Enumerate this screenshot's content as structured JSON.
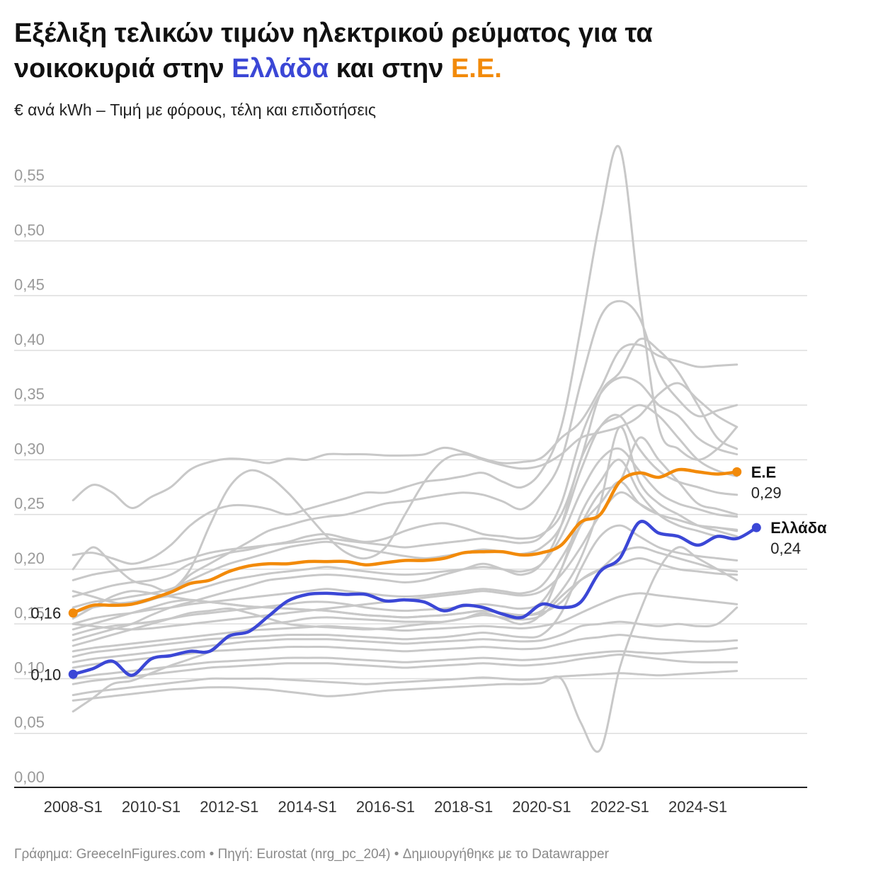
{
  "title": {
    "line1": "Εξέλιξη τελικών τιμών ηλεκτρικού ρεύματος για τα",
    "line2_prefix": "νοικοκυριά στην ",
    "line2_greece": "Ελλάδα",
    "line2_middle": " και στην ",
    "line2_eu": "Ε.Ε."
  },
  "subtitle": "€ ανά kWh – Τιμή με φόρους, τέλη και επιδοτήσεις",
  "footer": "Γράφημα: GreeceInFigures.com • Πηγή: Eurostat (nrg_pc_204) • Δημιουργήθηκε με το Datawrapper",
  "colors": {
    "greece": "#3b47d6",
    "eu": "#f28a0a",
    "other": "#c8c8c8",
    "grid": "#dddddd",
    "axis": "#222222"
  },
  "chart_data": {
    "type": "line",
    "x_start": 2008.0,
    "x_step": 0.5,
    "x_range": [
      2006.8,
      2026.5
    ],
    "ylim": [
      0,
      0.55
    ],
    "y_ticks": [
      "0,00",
      "0,05",
      "0,10",
      "0,15",
      "0,20",
      "0,25",
      "0,30",
      "0,35",
      "0,40",
      "0,45",
      "0,50",
      "0,55"
    ],
    "y_tick_values": [
      0,
      0.05,
      0.1,
      0.15,
      0.2,
      0.25,
      0.3,
      0.35,
      0.4,
      0.45,
      0.5,
      0.55
    ],
    "x_ticks": [
      "2008-S1",
      "2010-S1",
      "2012-S1",
      "2014-S1",
      "2016-S1",
      "2018-S1",
      "2020-S1",
      "2022-S1",
      "2024-S1"
    ],
    "x_tick_values": [
      2008,
      2010,
      2012,
      2014,
      2016,
      2018,
      2020,
      2022,
      2024
    ],
    "highlight": [
      {
        "key": "eu",
        "name": "Ε.Ε",
        "value_label": "0,29",
        "start_label": "0,16",
        "values": [
          0.16,
          0.167,
          0.167,
          0.168,
          0.173,
          0.179,
          0.187,
          0.19,
          0.198,
          0.203,
          0.205,
          0.205,
          0.207,
          0.207,
          0.207,
          0.204,
          0.206,
          0.208,
          0.208,
          0.21,
          0.215,
          0.216,
          0.216,
          0.213,
          0.215,
          0.222,
          0.243,
          0.25,
          0.28,
          0.288,
          0.284,
          0.291,
          0.289,
          0.287,
          0.289
        ]
      },
      {
        "key": "greece",
        "name": "Ελλάδα",
        "value_label": "0,24",
        "start_label": "0,10",
        "values": [
          0.104,
          0.109,
          0.116,
          0.103,
          0.118,
          0.121,
          0.125,
          0.125,
          0.139,
          0.143,
          0.157,
          0.171,
          0.177,
          0.178,
          0.177,
          0.177,
          0.171,
          0.172,
          0.17,
          0.162,
          0.167,
          0.165,
          0.159,
          0.156,
          0.168,
          0.165,
          0.17,
          0.198,
          0.21,
          0.243,
          0.233,
          0.23,
          0.222,
          0.23,
          0.228,
          0.238
        ]
      }
    ],
    "other_series": [
      [
        0.263,
        0.277,
        0.27,
        0.256,
        0.266,
        0.275,
        0.291,
        0.298,
        0.301,
        0.3,
        0.297,
        0.301,
        0.3,
        0.305,
        0.305,
        0.305,
        0.304,
        0.304,
        0.305,
        0.311,
        0.307,
        0.301,
        0.297,
        0.298,
        0.302,
        0.32,
        0.335,
        0.365,
        0.4,
        0.405,
        0.395,
        0.39,
        0.385,
        0.386,
        0.387
      ],
      [
        0.213,
        0.215,
        0.21,
        0.205,
        0.21,
        0.222,
        0.24,
        0.252,
        0.258,
        0.258,
        0.255,
        0.25,
        0.255,
        0.26,
        0.265,
        0.27,
        0.27,
        0.275,
        0.28,
        0.282,
        0.285,
        0.288,
        0.28,
        0.275,
        0.29,
        0.33,
        0.42,
        0.52,
        0.585,
        0.45,
        0.33,
        0.31,
        0.3,
        0.31,
        0.33
      ],
      [
        0.2,
        0.22,
        0.205,
        0.19,
        0.185,
        0.18,
        0.195,
        0.205,
        0.215,
        0.225,
        0.235,
        0.24,
        0.245,
        0.248,
        0.25,
        0.255,
        0.26,
        0.262,
        0.265,
        0.268,
        0.27,
        0.268,
        0.262,
        0.255,
        0.27,
        0.3,
        0.37,
        0.43,
        0.445,
        0.43,
        0.38,
        0.355,
        0.34,
        0.345,
        0.35
      ],
      [
        0.18,
        0.175,
        0.17,
        0.168,
        0.172,
        0.18,
        0.2,
        0.24,
        0.275,
        0.29,
        0.285,
        0.27,
        0.25,
        0.23,
        0.215,
        0.21,
        0.22,
        0.25,
        0.28,
        0.3,
        0.305,
        0.3,
        0.295,
        0.292,
        0.295,
        0.305,
        0.32,
        0.325,
        0.33,
        0.34,
        0.36,
        0.37,
        0.355,
        0.34,
        0.33
      ],
      [
        0.175,
        0.18,
        0.185,
        0.188,
        0.19,
        0.195,
        0.205,
        0.21,
        0.215,
        0.218,
        0.222,
        0.225,
        0.23,
        0.232,
        0.228,
        0.225,
        0.228,
        0.235,
        0.24,
        0.242,
        0.238,
        0.232,
        0.23,
        0.228,
        0.232,
        0.25,
        0.3,
        0.36,
        0.38,
        0.41,
        0.4,
        0.38,
        0.35,
        0.32,
        0.31
      ],
      [
        0.165,
        0.17,
        0.172,
        0.175,
        0.178,
        0.182,
        0.19,
        0.198,
        0.205,
        0.21,
        0.215,
        0.22,
        0.223,
        0.225,
        0.222,
        0.218,
        0.215,
        0.212,
        0.21,
        0.212,
        0.215,
        0.218,
        0.216,
        0.214,
        0.22,
        0.24,
        0.29,
        0.33,
        0.34,
        0.31,
        0.29,
        0.28,
        0.275,
        0.27,
        0.268
      ],
      [
        0.16,
        0.165,
        0.168,
        0.17,
        0.173,
        0.176,
        0.18,
        0.185,
        0.19,
        0.193,
        0.196,
        0.198,
        0.2,
        0.202,
        0.2,
        0.198,
        0.196,
        0.195,
        0.196,
        0.198,
        0.2,
        0.202,
        0.2,
        0.198,
        0.205,
        0.23,
        0.27,
        0.3,
        0.31,
        0.29,
        0.27,
        0.26,
        0.255,
        0.25,
        0.248
      ],
      [
        0.15,
        0.155,
        0.158,
        0.16,
        0.163,
        0.165,
        0.168,
        0.17,
        0.172,
        0.174,
        0.176,
        0.178,
        0.18,
        0.182,
        0.18,
        0.178,
        0.176,
        0.175,
        0.176,
        0.178,
        0.18,
        0.182,
        0.18,
        0.178,
        0.185,
        0.21,
        0.24,
        0.26,
        0.28,
        0.26,
        0.25,
        0.245,
        0.24,
        0.238,
        0.235
      ],
      [
        0.145,
        0.15,
        0.155,
        0.16,
        0.165,
        0.17,
        0.172,
        0.17,
        0.168,
        0.166,
        0.165,
        0.164,
        0.163,
        0.162,
        0.16,
        0.158,
        0.157,
        0.156,
        0.157,
        0.158,
        0.16,
        0.162,
        0.16,
        0.158,
        0.16,
        0.17,
        0.19,
        0.2,
        0.205,
        0.21,
        0.205,
        0.2,
        0.198,
        0.196,
        0.195
      ],
      [
        0.14,
        0.145,
        0.148,
        0.15,
        0.152,
        0.155,
        0.158,
        0.16,
        0.162,
        0.164,
        0.166,
        0.168,
        0.17,
        0.17,
        0.168,
        0.165,
        0.163,
        0.162,
        0.163,
        0.164,
        0.166,
        0.168,
        0.166,
        0.164,
        0.17,
        0.2,
        0.25,
        0.28,
        0.3,
        0.27,
        0.25,
        0.24,
        0.235,
        0.23,
        0.228
      ],
      [
        0.13,
        0.135,
        0.14,
        0.145,
        0.15,
        0.155,
        0.16,
        0.162,
        0.164,
        0.16,
        0.155,
        0.15,
        0.148,
        0.147,
        0.146,
        0.145,
        0.146,
        0.148,
        0.15,
        0.152,
        0.155,
        0.158,
        0.156,
        0.154,
        0.158,
        0.175,
        0.19,
        0.2,
        0.215,
        0.22,
        0.215,
        0.21,
        0.205,
        0.2,
        0.198
      ],
      [
        0.125,
        0.128,
        0.13,
        0.132,
        0.134,
        0.136,
        0.138,
        0.14,
        0.142,
        0.144,
        0.145,
        0.146,
        0.147,
        0.148,
        0.147,
        0.146,
        0.145,
        0.144,
        0.145,
        0.146,
        0.147,
        0.148,
        0.147,
        0.146,
        0.148,
        0.152,
        0.16,
        0.168,
        0.175,
        0.178,
        0.176,
        0.174,
        0.172,
        0.17,
        0.168
      ],
      [
        0.12,
        0.124,
        0.126,
        0.128,
        0.13,
        0.132,
        0.134,
        0.136,
        0.137,
        0.138,
        0.139,
        0.14,
        0.14,
        0.14,
        0.139,
        0.138,
        0.137,
        0.136,
        0.137,
        0.138,
        0.14,
        0.142,
        0.14,
        0.138,
        0.14,
        0.16,
        0.2,
        0.23,
        0.24,
        0.23,
        0.22,
        0.215,
        0.212,
        0.21,
        0.208
      ],
      [
        0.115,
        0.118,
        0.12,
        0.122,
        0.124,
        0.126,
        0.128,
        0.13,
        0.132,
        0.134,
        0.135,
        0.136,
        0.136,
        0.136,
        0.135,
        0.134,
        0.133,
        0.132,
        0.133,
        0.134,
        0.135,
        0.136,
        0.135,
        0.134,
        0.135,
        0.14,
        0.148,
        0.15,
        0.152,
        0.15,
        0.148,
        0.15,
        0.148,
        0.15,
        0.165
      ],
      [
        0.11,
        0.113,
        0.115,
        0.117,
        0.119,
        0.121,
        0.123,
        0.125,
        0.126,
        0.127,
        0.128,
        0.129,
        0.129,
        0.129,
        0.128,
        0.127,
        0.126,
        0.125,
        0.126,
        0.127,
        0.128,
        0.129,
        0.128,
        0.127,
        0.128,
        0.132,
        0.136,
        0.138,
        0.14,
        0.138,
        0.136,
        0.135,
        0.134,
        0.134,
        0.135
      ],
      [
        0.1,
        0.103,
        0.105,
        0.107,
        0.109,
        0.111,
        0.113,
        0.115,
        0.116,
        0.117,
        0.118,
        0.119,
        0.119,
        0.119,
        0.118,
        0.117,
        0.116,
        0.115,
        0.116,
        0.117,
        0.118,
        0.119,
        0.118,
        0.117,
        0.118,
        0.12,
        0.122,
        0.124,
        0.125,
        0.124,
        0.123,
        0.124,
        0.125,
        0.126,
        0.128
      ],
      [
        0.095,
        0.098,
        0.1,
        0.102,
        0.104,
        0.106,
        0.108,
        0.11,
        0.111,
        0.112,
        0.113,
        0.114,
        0.114,
        0.114,
        0.113,
        0.112,
        0.111,
        0.11,
        0.111,
        0.112,
        0.113,
        0.114,
        0.113,
        0.112,
        0.113,
        0.115,
        0.118,
        0.12,
        0.122,
        0.12,
        0.118,
        0.116,
        0.115,
        0.115,
        0.115
      ],
      [
        0.085,
        0.088,
        0.09,
        0.092,
        0.094,
        0.096,
        0.098,
        0.1,
        0.1,
        0.1,
        0.1,
        0.099,
        0.098,
        0.097,
        0.096,
        0.095,
        0.096,
        0.097,
        0.098,
        0.099,
        0.1,
        0.101,
        0.1,
        0.099,
        0.1,
        0.102,
        0.103,
        0.104,
        0.105,
        0.104,
        0.103,
        0.104,
        0.105,
        0.106,
        0.107
      ],
      [
        0.08,
        0.082,
        0.084,
        0.086,
        0.088,
        0.09,
        0.091,
        0.092,
        0.092,
        0.091,
        0.09,
        0.088,
        0.086,
        0.084,
        0.085,
        0.087,
        0.089,
        0.09,
        0.091,
        0.092,
        0.093,
        0.094,
        0.095,
        0.095,
        0.096,
        0.1,
        0.06,
        0.035,
        0.11,
        0.16,
        0.2,
        0.22,
        0.21,
        0.2,
        0.19
      ],
      [
        0.07,
        0.082,
        0.095,
        0.098,
        0.105,
        0.112,
        0.118,
        0.125,
        0.14,
        0.145,
        0.15,
        0.152,
        0.155,
        0.156,
        0.155,
        0.154,
        0.153,
        0.152,
        0.152,
        0.152,
        0.155,
        0.16,
        0.155,
        0.15,
        0.16,
        0.2,
        0.24,
        0.27,
        0.28,
        0.32,
        0.3,
        0.28,
        0.26,
        0.255,
        0.25
      ],
      [
        0.155,
        0.165,
        0.175,
        0.18,
        0.178,
        0.175,
        0.172,
        0.17,
        0.168,
        0.166,
        0.165,
        0.164,
        0.163,
        0.162,
        0.16,
        0.158,
        0.157,
        0.156,
        0.157,
        0.158,
        0.16,
        0.162,
        0.16,
        0.158,
        0.162,
        0.18,
        0.21,
        0.26,
        0.33,
        0.28,
        0.26,
        0.25,
        0.24,
        0.235,
        0.23
      ],
      [
        0.135,
        0.14,
        0.145,
        0.15,
        0.158,
        0.165,
        0.17,
        0.175,
        0.18,
        0.185,
        0.19,
        0.192,
        0.194,
        0.195,
        0.194,
        0.192,
        0.19,
        0.188,
        0.19,
        0.195,
        0.2,
        0.205,
        0.2,
        0.195,
        0.205,
        0.24,
        0.3,
        0.33,
        0.34,
        0.35,
        0.34,
        0.32,
        0.3,
        0.29,
        0.285
      ],
      [
        0.15,
        0.148,
        0.146,
        0.145,
        0.146,
        0.148,
        0.15,
        0.152,
        0.154,
        0.156,
        0.158,
        0.16,
        0.162,
        0.164,
        0.166,
        0.168,
        0.17,
        0.172,
        0.174,
        0.176,
        0.178,
        0.18,
        0.178,
        0.176,
        0.18,
        0.195,
        0.22,
        0.25,
        0.27,
        0.26,
        0.25,
        0.245,
        0.24,
        0.238,
        0.236
      ],
      [
        0.19,
        0.195,
        0.198,
        0.2,
        0.202,
        0.205,
        0.21,
        0.215,
        0.218,
        0.22,
        0.222,
        0.224,
        0.226,
        0.228,
        0.226,
        0.224,
        0.222,
        0.22,
        0.222,
        0.224,
        0.226,
        0.228,
        0.226,
        0.224,
        0.23,
        0.26,
        0.32,
        0.36,
        0.375,
        0.37,
        0.35,
        0.34,
        0.32,
        0.31,
        0.305
      ]
    ]
  }
}
